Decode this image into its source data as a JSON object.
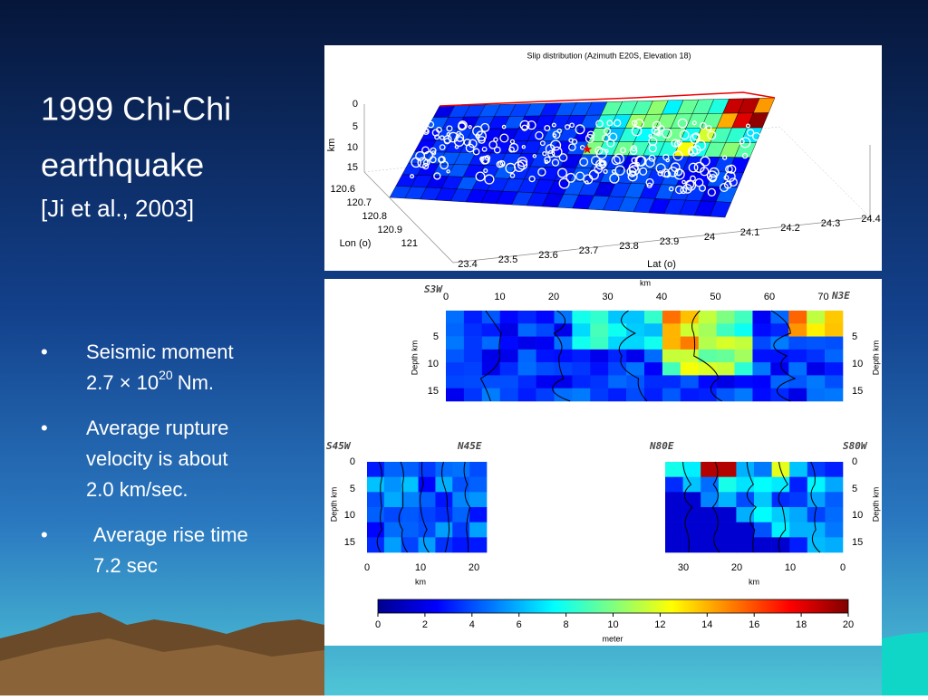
{
  "slide": {
    "title_line1": "1999 Chi-Chi",
    "title_line2": "earthquake",
    "citation": "[Ji et al., 2003]",
    "bullets": [
      {
        "lines": [
          "Seismic moment"
        ],
        "base": "2.7 × 10",
        "exponent": "20",
        "unit": "Nm."
      },
      {
        "lines": [
          "Average rupture",
          "velocity is about",
          "2.0 km/sec."
        ]
      },
      {
        "lines": [
          "Average rise time",
          "7.2 sec"
        ]
      }
    ]
  },
  "figure_top": {
    "title": "Slip distribution (Azimuth E20S, Elevation 18)",
    "depth_ticks": [
      0,
      5,
      10,
      15
    ],
    "depth_label": "km",
    "lon_ticks": [
      120.6,
      120.7,
      120.8,
      120.9,
      121
    ],
    "lon_label": "Lon (o)",
    "lat_ticks": [
      23.4,
      23.5,
      23.6,
      23.7,
      23.8,
      23.9,
      24,
      24.1,
      24.2,
      24.3,
      24.4
    ],
    "lat_label": "Lat (o)"
  },
  "figure_bottom": {
    "top_panel": {
      "axis_label": "km",
      "x_ticks": [
        0,
        10,
        20,
        30,
        40,
        50,
        60,
        70
      ],
      "left_end": "S3W",
      "right_end": "N3E",
      "depth_ticks": [
        5,
        10,
        15
      ],
      "depth_label": "Depth km"
    },
    "left_panel": {
      "left_end": "S45W",
      "right_end": "N45E",
      "depth_ticks": [
        0,
        5,
        10,
        15
      ],
      "depth_label": "Depth km",
      "x_ticks": [
        0,
        10,
        20
      ],
      "x_label": "km"
    },
    "right_panel": {
      "left_end": "N80E",
      "right_end": "S80W",
      "depth_ticks": [
        0,
        5,
        10,
        15
      ],
      "depth_label": "Depth km",
      "x_ticks": [
        30,
        20,
        10,
        0
      ],
      "x_label": "km"
    },
    "colorbar": {
      "ticks": [
        0,
        2,
        4,
        6,
        8,
        10,
        12,
        14,
        16,
        18,
        20
      ],
      "label": "meter"
    }
  }
}
